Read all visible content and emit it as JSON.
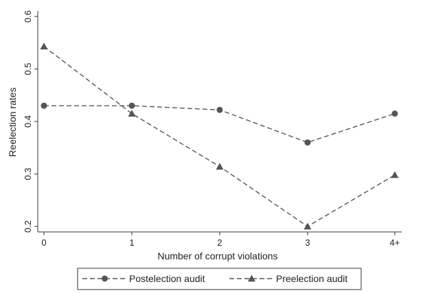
{
  "chart_data": {
    "type": "line",
    "categories": [
      "0",
      "1",
      "2",
      "3",
      "4+"
    ],
    "series": [
      {
        "name": "Postelection audit",
        "marker": "circle",
        "values": [
          0.43,
          0.43,
          0.422,
          0.36,
          0.415
        ]
      },
      {
        "name": "Preelection audit",
        "marker": "triangle",
        "values": [
          0.543,
          0.415,
          0.314,
          0.2,
          0.298
        ]
      }
    ],
    "title": "",
    "xlabel": "Number of corrupt violations",
    "ylabel": "Reelection rates",
    "ylim": [
      0.2,
      0.6
    ],
    "yticks": [
      "0.2",
      "0.3",
      "0.4",
      "0.5",
      "0.6"
    ],
    "grid": false,
    "legend_position": "bottom",
    "line_color": "#555555",
    "line_style": "dashed"
  }
}
